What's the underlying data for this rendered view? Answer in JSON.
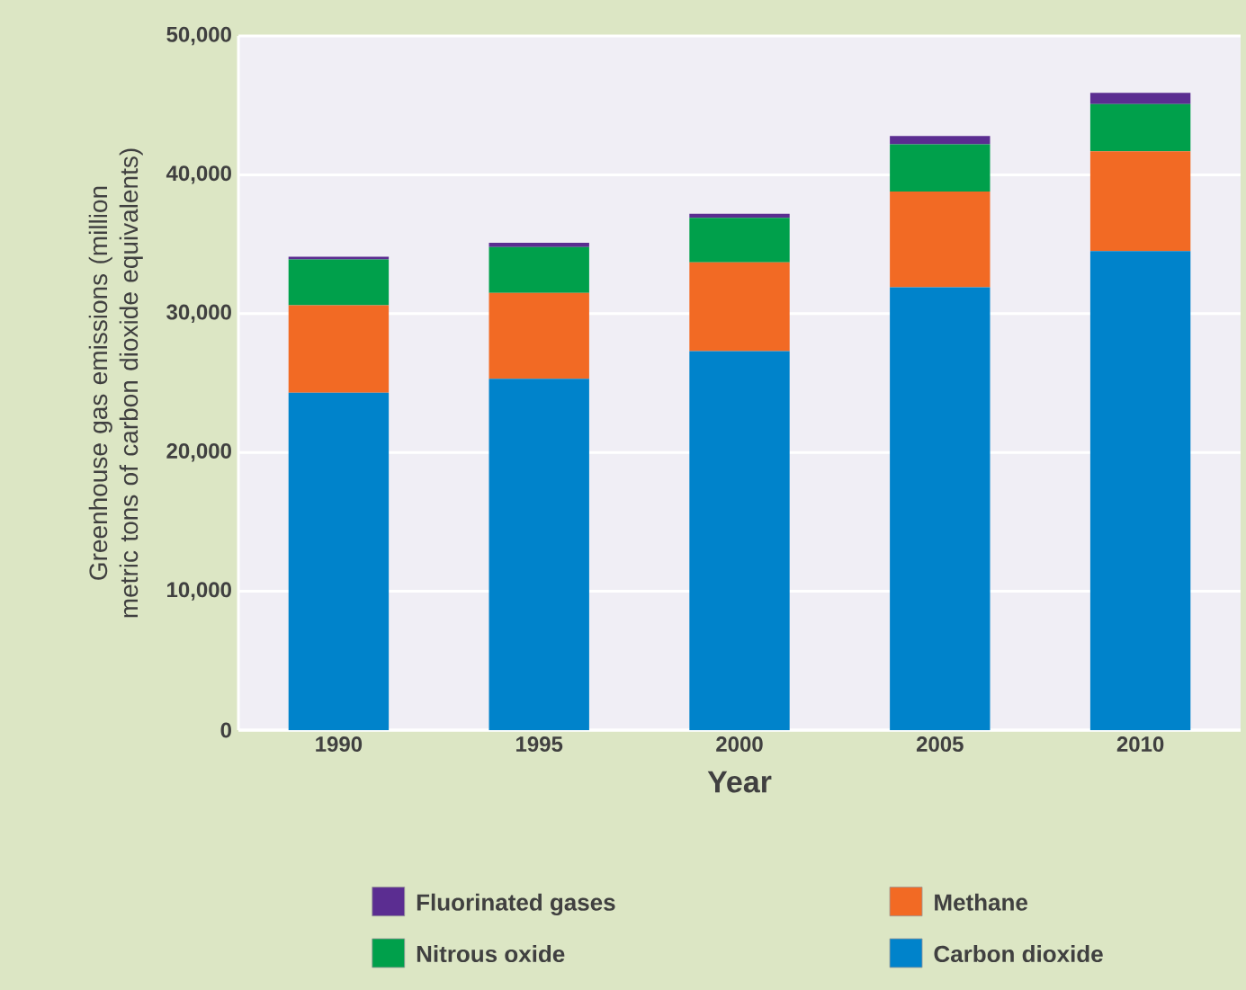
{
  "chart_data": {
    "type": "bar",
    "stacked": true,
    "xlabel": "Year",
    "ylabel": "Greenhouse gas emissions (million metric tons of carbon dioxide equivalents)",
    "categories": [
      "1990",
      "1995",
      "2000",
      "2005",
      "2010"
    ],
    "series": [
      {
        "name": "Carbon dioxide",
        "color": "#0083cb",
        "values": [
          24300,
          25300,
          27300,
          31900,
          34500
        ]
      },
      {
        "name": "Methane",
        "color": "#f26a24",
        "values": [
          6300,
          6200,
          6400,
          6900,
          7200
        ]
      },
      {
        "name": "Nitrous oxide",
        "color": "#00a04b",
        "values": [
          3300,
          3300,
          3200,
          3400,
          3400
        ]
      },
      {
        "name": "Fluorinated gases",
        "color": "#5b2d91",
        "values": [
          200,
          300,
          300,
          600,
          800
        ]
      }
    ],
    "ylim": [
      0,
      50000
    ],
    "yticks": [
      0,
      {
        "value": 10000,
        "label": "10,000"
      },
      {
        "value": 20000,
        "label": "20,000"
      },
      {
        "value": 30000,
        "label": "30,000"
      },
      {
        "value": 40000,
        "label": "40,000"
      },
      {
        "value": 50000,
        "label": "50,000"
      }
    ],
    "grid": "y",
    "legend": "bottom"
  }
}
